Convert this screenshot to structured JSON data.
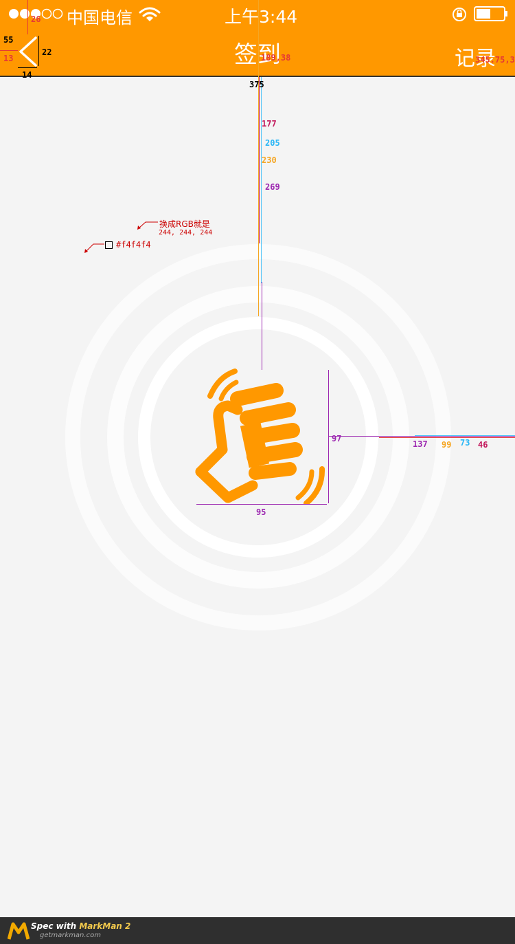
{
  "status_bar": {
    "carrier": "中国电信",
    "time": "上午3:44"
  },
  "nav": {
    "title": "签到",
    "right_label": "记录"
  },
  "measurements": {
    "top": [
      "26",
      "55",
      "13",
      "22",
      "14",
      "375",
      "189,38",
      "345.75,3"
    ],
    "vertical": [
      "177",
      "205",
      "230",
      "269"
    ],
    "icon": [
      "97",
      "95",
      "137",
      "99",
      "73",
      "46"
    ]
  },
  "annotations": {
    "note_line1": "换成RGB就是",
    "note_line2": "244, 244, 244",
    "swatch_hex": "#f4f4f4"
  },
  "colors": {
    "accent": "#ff9800",
    "background": "#f4f4f4"
  },
  "footer": {
    "spec_prefix": "Spec with",
    "brand": "MarkMan 2",
    "site": "getmarkman.com"
  }
}
